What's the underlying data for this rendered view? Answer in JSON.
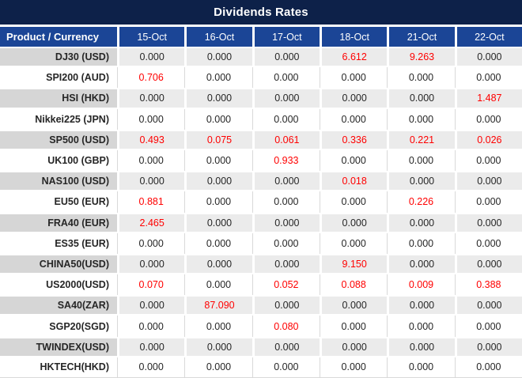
{
  "title": "Dividends Rates",
  "colors": {
    "title_bar_bg": "#0D2149",
    "header_bg": "#1B4596",
    "row_alt_product_bg": "#D6D6D6",
    "row_alt_value_bg": "#EBEBEB",
    "highlight_value": "#FF0000",
    "text": "#262626"
  },
  "table": {
    "product_header": "Product / Currency",
    "date_headers": [
      "15-Oct",
      "16-Oct",
      "17-Oct",
      "18-Oct",
      "21-Oct",
      "22-Oct"
    ],
    "rows": [
      {
        "product": "DJ30 (USD)",
        "values": [
          "0.000",
          "0.000",
          "0.000",
          "6.612",
          "9.263",
          "0.000"
        ]
      },
      {
        "product": "SPI200 (AUD)",
        "values": [
          "0.706",
          "0.000",
          "0.000",
          "0.000",
          "0.000",
          "0.000"
        ]
      },
      {
        "product": "HSI (HKD)",
        "values": [
          "0.000",
          "0.000",
          "0.000",
          "0.000",
          "0.000",
          "1.487"
        ]
      },
      {
        "product": "Nikkei225 (JPN)",
        "values": [
          "0.000",
          "0.000",
          "0.000",
          "0.000",
          "0.000",
          "0.000"
        ]
      },
      {
        "product": "SP500 (USD)",
        "values": [
          "0.493",
          "0.075",
          "0.061",
          "0.336",
          "0.221",
          "0.026"
        ]
      },
      {
        "product": "UK100 (GBP)",
        "values": [
          "0.000",
          "0.000",
          "0.933",
          "0.000",
          "0.000",
          "0.000"
        ]
      },
      {
        "product": "NAS100 (USD)",
        "values": [
          "0.000",
          "0.000",
          "0.000",
          "0.018",
          "0.000",
          "0.000"
        ]
      },
      {
        "product": "EU50 (EUR)",
        "values": [
          "0.881",
          "0.000",
          "0.000",
          "0.000",
          "0.226",
          "0.000"
        ]
      },
      {
        "product": "FRA40 (EUR)",
        "values": [
          "2.465",
          "0.000",
          "0.000",
          "0.000",
          "0.000",
          "0.000"
        ]
      },
      {
        "product": "ES35 (EUR)",
        "values": [
          "0.000",
          "0.000",
          "0.000",
          "0.000",
          "0.000",
          "0.000"
        ]
      },
      {
        "product": "CHINA50(USD)",
        "values": [
          "0.000",
          "0.000",
          "0.000",
          "9.150",
          "0.000",
          "0.000"
        ]
      },
      {
        "product": "US2000(USD)",
        "values": [
          "0.070",
          "0.000",
          "0.052",
          "0.088",
          "0.009",
          "0.388"
        ]
      },
      {
        "product": "SA40(ZAR)",
        "values": [
          "0.000",
          "87.090",
          "0.000",
          "0.000",
          "0.000",
          "0.000"
        ]
      },
      {
        "product": "SGP20(SGD)",
        "values": [
          "0.000",
          "0.000",
          "0.080",
          "0.000",
          "0.000",
          "0.000"
        ]
      },
      {
        "product": "TWINDEX(USD)",
        "values": [
          "0.000",
          "0.000",
          "0.000",
          "0.000",
          "0.000",
          "0.000"
        ]
      },
      {
        "product": "HKTECH(HKD)",
        "values": [
          "0.000",
          "0.000",
          "0.000",
          "0.000",
          "0.000",
          "0.000"
        ]
      }
    ]
  }
}
